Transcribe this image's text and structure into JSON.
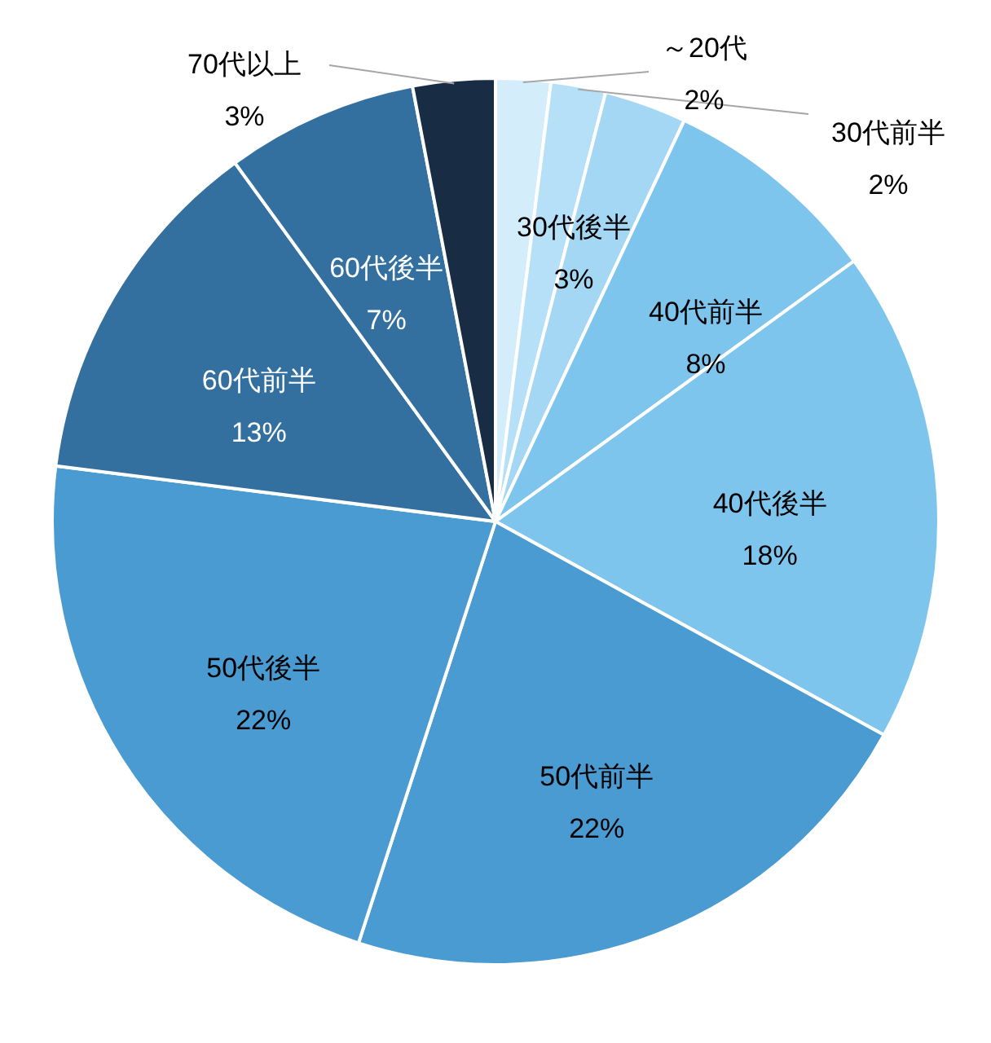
{
  "chart_data": {
    "type": "pie",
    "categories": [
      "～20代",
      "30代前半",
      "30代後半",
      "40代前半",
      "40代後半",
      "50代前半",
      "50代後半",
      "60代前半",
      "60代後半",
      "70代以上"
    ],
    "values": [
      2,
      2,
      3,
      8,
      18,
      22,
      22,
      13,
      7,
      3
    ],
    "value_labels": [
      "2%",
      "2%",
      "3%",
      "8%",
      "18%",
      "22%",
      "22%",
      "13%",
      "7%",
      "3%"
    ],
    "colors": [
      "#d4edfa",
      "#b5e0f7",
      "#a3d7f3",
      "#7ec5ee",
      "#7ec5ee",
      "#4a9bd1",
      "#4a9bd1",
      "#33709f",
      "#33709f",
      "#182d44"
    ]
  }
}
